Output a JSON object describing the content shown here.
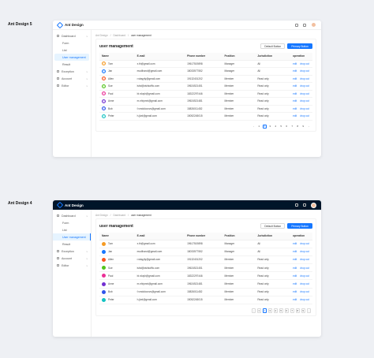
{
  "labels": {
    "v5": "Ant Design 5",
    "v4": "Ant Design 4"
  },
  "app": {
    "title": "Ant Design"
  },
  "breadcrumb": [
    "Ant Design",
    "Dashboard",
    "user management"
  ],
  "sidebar": [
    {
      "label": "Dashboard",
      "icon": "dashboard-icon",
      "type": "group"
    },
    {
      "label": "Form",
      "type": "sub"
    },
    {
      "label": "List",
      "type": "sub"
    },
    {
      "label": "User management",
      "type": "sub",
      "active": true
    },
    {
      "label": "Result",
      "type": "sub"
    },
    {
      "label": "Exception",
      "icon": "warning-icon",
      "type": "group"
    },
    {
      "label": "Account",
      "icon": "user-icon",
      "type": "group"
    },
    {
      "label": "Editor",
      "icon": "edit-icon",
      "type": "group"
    }
  ],
  "page": {
    "title": "user management",
    "default_button": "Default Button",
    "primary_button": "Primary Button"
  },
  "table": {
    "columns": [
      "Name",
      "E-mail",
      "Phone number",
      "Position",
      "Jurisdiction",
      "operation"
    ],
    "operations": [
      "edit",
      "drop out"
    ],
    "rows": [
      {
        "name": "Tom",
        "email": "x.th@gmail.com",
        "phone": "19617519898",
        "position": "Manager",
        "jurisdiction": "All",
        "color": "#f59a23"
      },
      {
        "name": "Jan",
        "email": "mudihand@gmail.com",
        "phone": "18033577552",
        "position": "Manager",
        "jurisdiction": "All",
        "color": "#1677ff"
      },
      {
        "name": "Allen",
        "email": "r.stayyfy@gmail.com",
        "phone": "19132401202",
        "position": "Member",
        "jurisdiction": "Read only",
        "color": "#fa541c"
      },
      {
        "name": "Sue",
        "email": "lshd@dshkoffic.com",
        "phone": "19624521451",
        "position": "Member",
        "jurisdiction": "Read only",
        "color": "#52c41a"
      },
      {
        "name": "Paul",
        "email": "bi.rduyh@gmail.com",
        "phone": "18322297446",
        "position": "Member",
        "jurisdiction": "Read only",
        "color": "#eb2f96"
      },
      {
        "name": "Anne",
        "email": "m.nhiymni@gmail.com",
        "phone": "19624521481",
        "position": "Member",
        "jurisdiction": "Read only",
        "color": "#722ed1"
      },
      {
        "name": "Bob",
        "email": "f.vmdcloovvs@gmail.com",
        "phone": "15826011452",
        "position": "Member",
        "jurisdiction": "Read only",
        "color": "#2f54eb"
      },
      {
        "name": "Peter",
        "email": "h.jtvd@gmail.com",
        "phone": "15052245015",
        "position": "Member",
        "jurisdiction": "Read only",
        "color": "#13c2c2"
      }
    ]
  },
  "pagination": {
    "pages": [
      "1",
      "2",
      "3",
      "4",
      "5",
      "6",
      "7",
      "8",
      "9"
    ],
    "current": "2",
    "prev": "‹",
    "next": "›"
  }
}
